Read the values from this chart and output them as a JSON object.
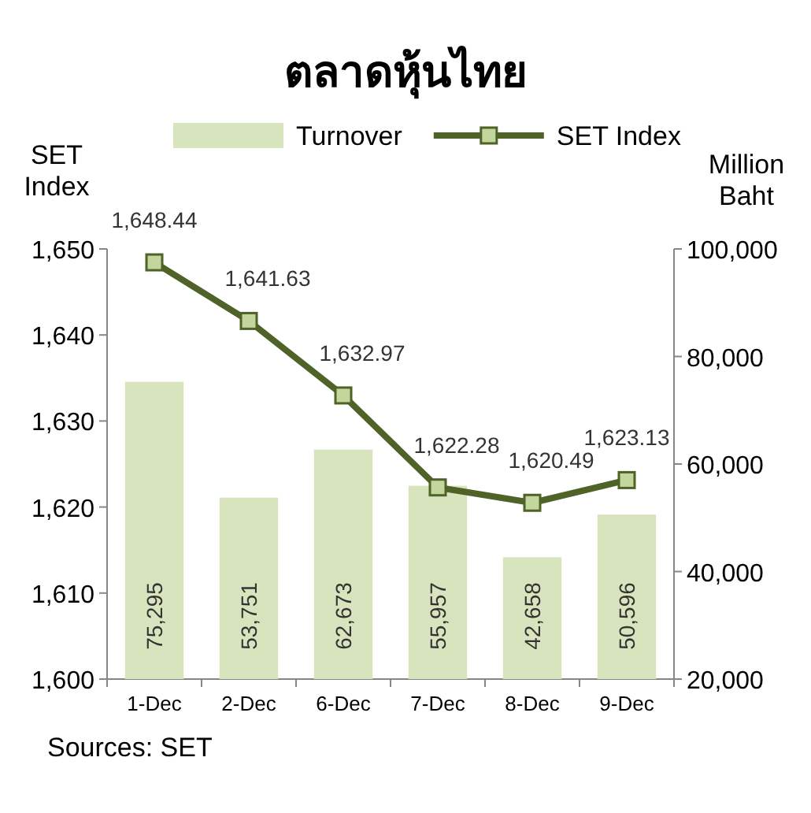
{
  "chart_data": {
    "type": "bar",
    "title": "ตลาดหุ้นไทย",
    "categories": [
      "1-Dec",
      "2-Dec",
      "6-Dec",
      "7-Dec",
      "8-Dec",
      "9-Dec"
    ],
    "series": [
      {
        "name": "Turnover",
        "axis": "y2",
        "color": "#d7e4bd",
        "values": [
          75295,
          53751,
          62673,
          55957,
          42658,
          50596
        ],
        "value_labels": [
          "75,295",
          "53,751",
          "62,673",
          "55,957",
          "42,658",
          "50,596"
        ]
      },
      {
        "name": "SET Index",
        "type": "line",
        "axis": "y",
        "color": "#4f6228",
        "marker": "square",
        "values": [
          1648.44,
          1641.63,
          1632.97,
          1622.28,
          1620.49,
          1623.13
        ],
        "value_labels": [
          "1,648.44",
          "1,641.63",
          "1,632.97",
          "1,622.28",
          "1,620.49",
          "1,623.13"
        ]
      }
    ],
    "ylabel": "SET Index",
    "y2label": "Million Baht",
    "ylim": [
      1600,
      1650
    ],
    "yticks": [
      {
        "value": 1600,
        "label": "1,600"
      },
      {
        "value": 1610,
        "label": "1,610"
      },
      {
        "value": 1620,
        "label": "1,620"
      },
      {
        "value": 1630,
        "label": "1,630"
      },
      {
        "value": 1640,
        "label": "1,640"
      },
      {
        "value": 1650,
        "label": "1,650"
      }
    ],
    "y2lim": [
      20000,
      100000
    ],
    "y2ticks": [
      {
        "value": 20000,
        "label": "20,000"
      },
      {
        "value": 40000,
        "label": "40,000"
      },
      {
        "value": 60000,
        "label": "60,000"
      },
      {
        "value": 80000,
        "label": "80,000"
      },
      {
        "value": 100000,
        "label": "100,000"
      }
    ],
    "legend": "top",
    "annotations": [
      "Sources: SET"
    ]
  }
}
